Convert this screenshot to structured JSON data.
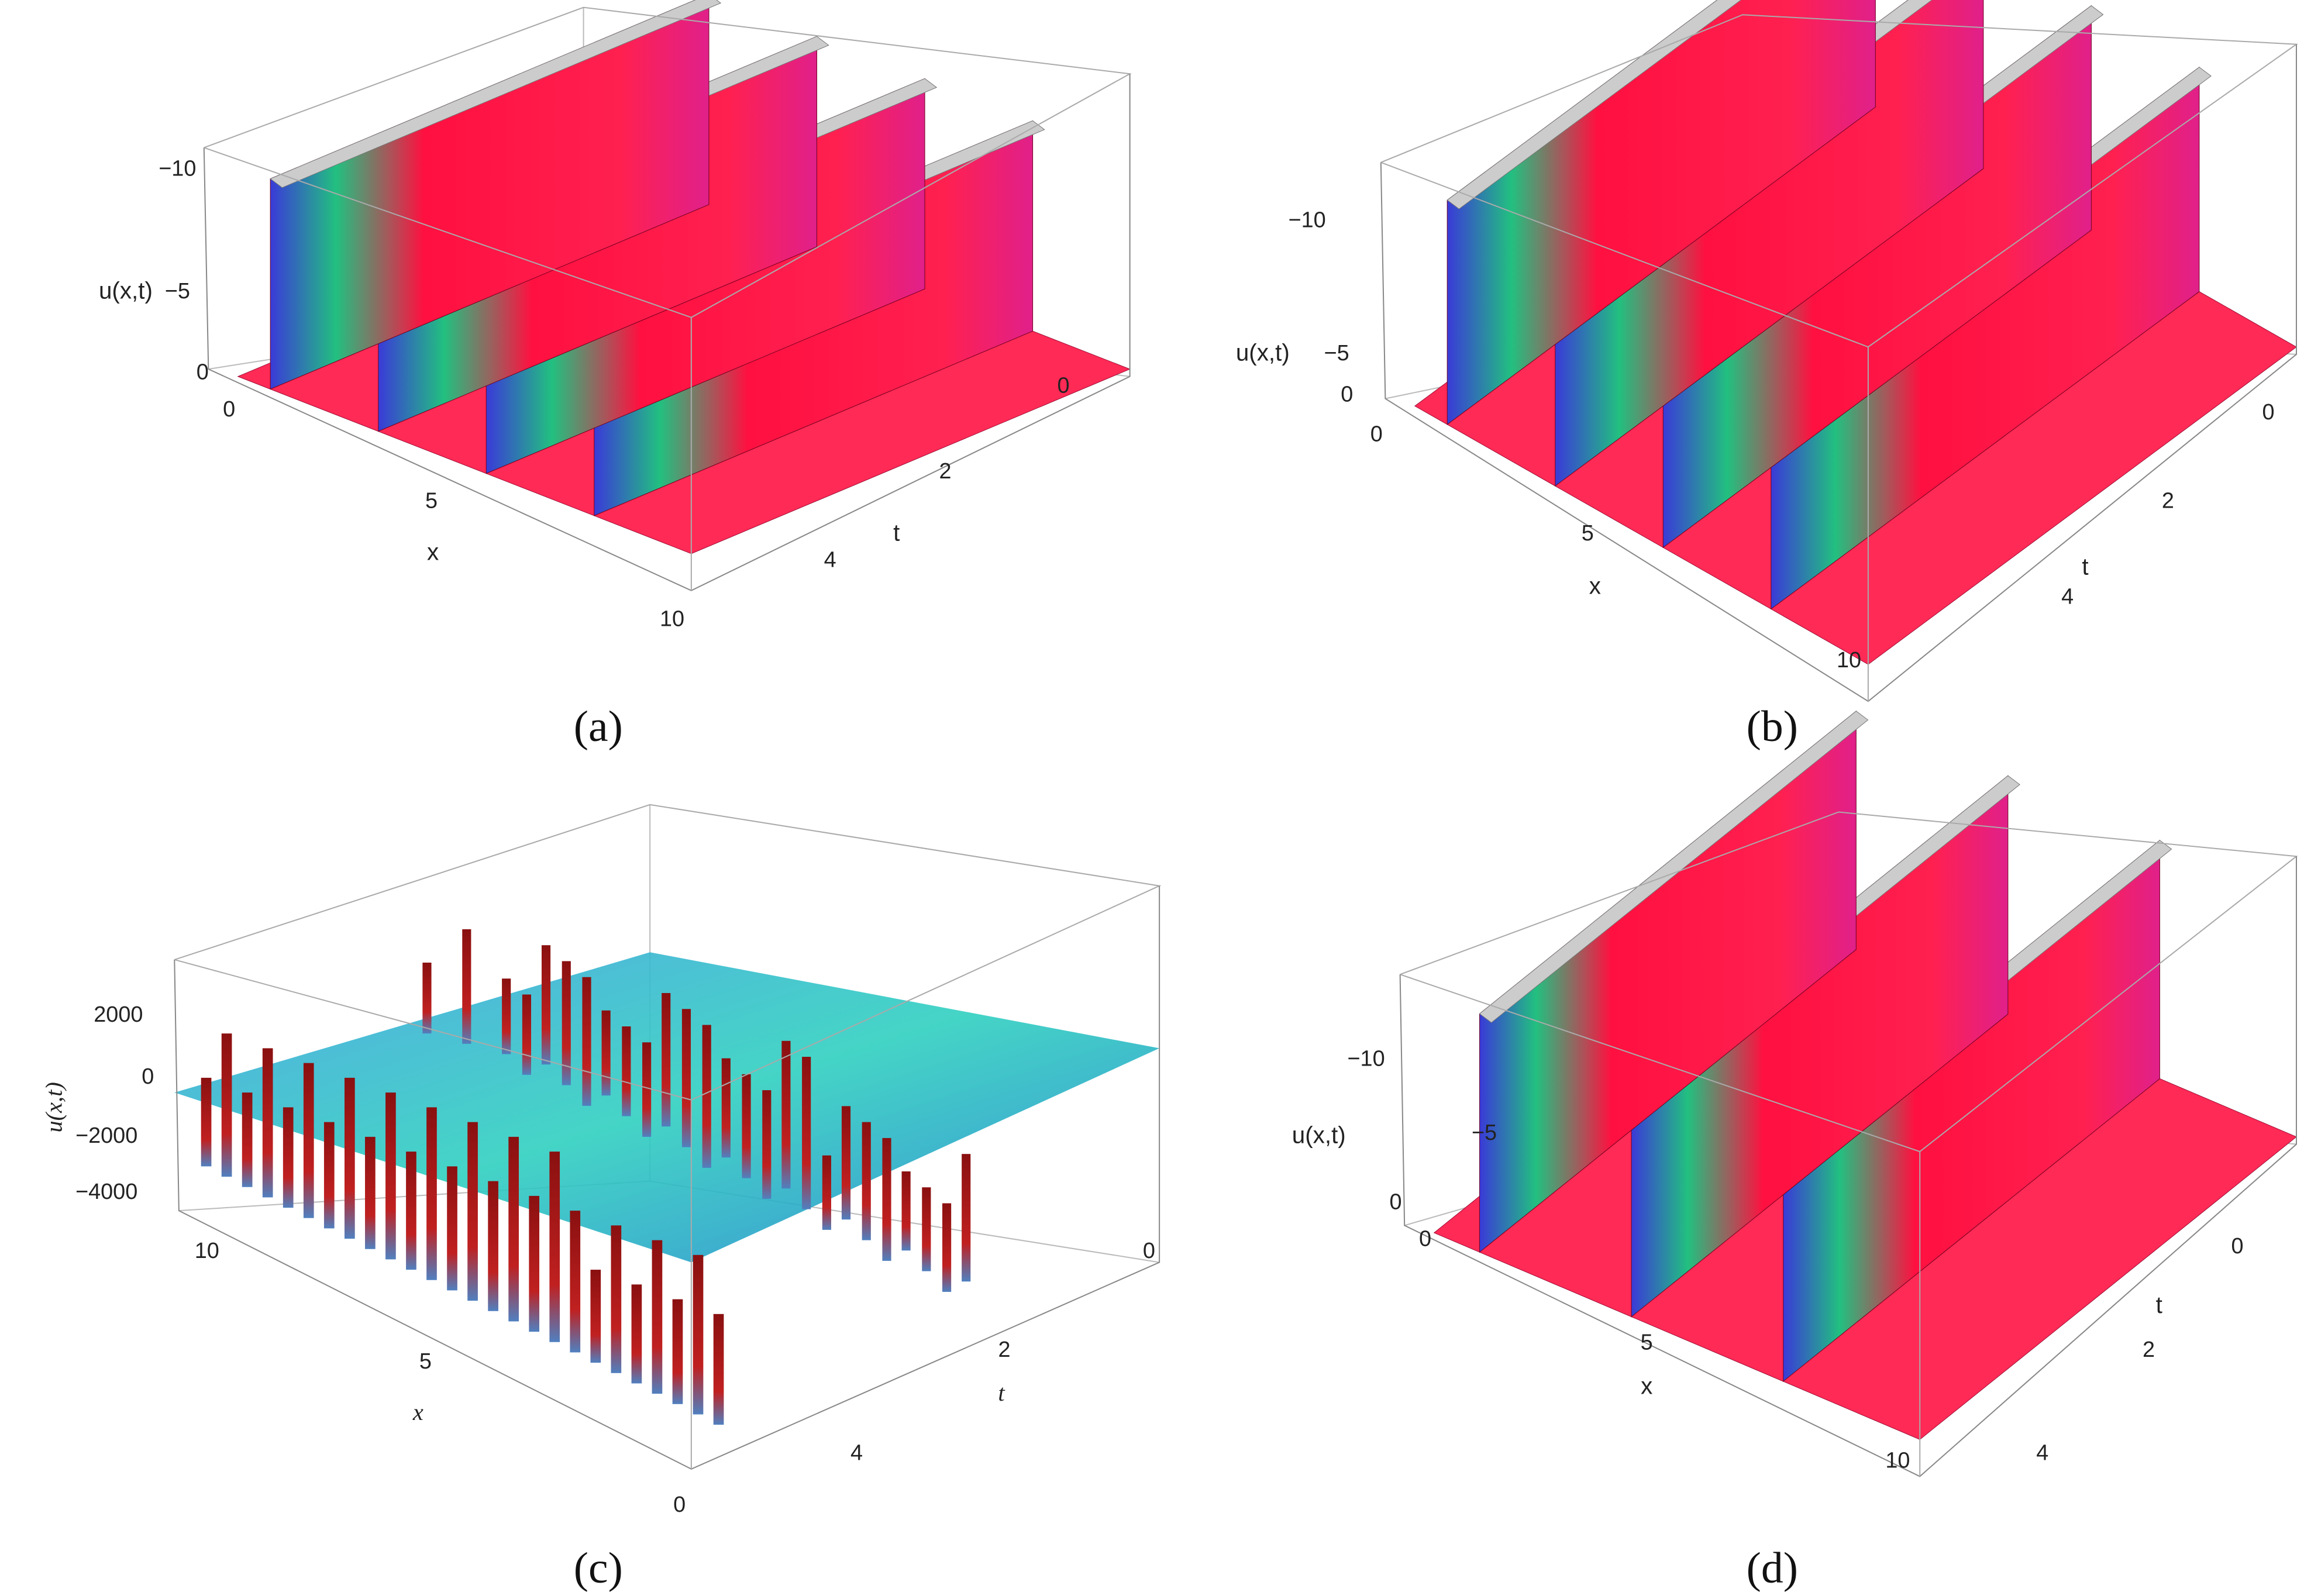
{
  "panels": [
    {
      "caption": "(a)",
      "z_label": "u(x,t)",
      "z_ticks": [
        "−10",
        "−5",
        "0"
      ],
      "x_label": "x",
      "x_ticks": [
        "0",
        "5",
        "10"
      ],
      "t_label": "t",
      "t_ticks": [
        "0",
        "2",
        "4"
      ]
    },
    {
      "caption": "(b)",
      "z_label": "u(x,t)",
      "z_ticks": [
        "−10",
        "−5",
        "0"
      ],
      "x_label": "x",
      "x_ticks": [
        "0",
        "5",
        "10"
      ],
      "t_label": "t",
      "t_ticks": [
        "0",
        "2",
        "4"
      ]
    },
    {
      "caption": "(c)",
      "z_label": "u(x,t)",
      "z_ticks": [
        "2000",
        "0",
        "−2000",
        "−4000"
      ],
      "x_label": "x",
      "x_ticks": [
        "10",
        "5",
        "0"
      ],
      "t_label": "t",
      "t_ticks": [
        "0",
        "2",
        "4"
      ]
    },
    {
      "caption": "(d)",
      "z_label": "u(x,t)",
      "z_ticks": [
        "−10",
        "−5",
        "0"
      ],
      "x_label": "x",
      "x_ticks": [
        "0",
        "5",
        "10"
      ],
      "t_label": "t",
      "t_ticks": [
        "0",
        "2",
        "4"
      ]
    }
  ]
}
